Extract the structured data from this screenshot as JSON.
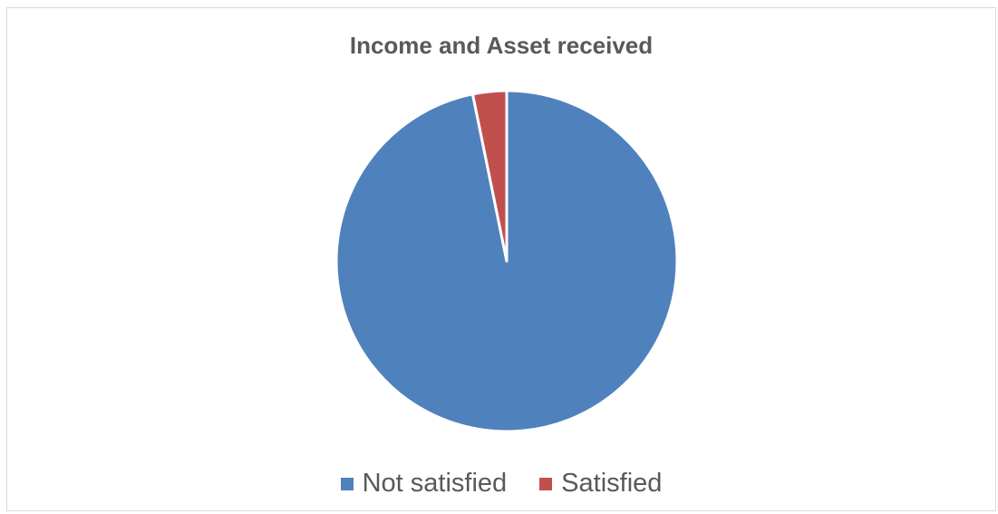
{
  "chart_data": {
    "type": "pie",
    "title": "Income and Asset received",
    "categories": [
      "Not satisfied",
      "Satisfied"
    ],
    "values": [
      96.8,
      3.2
    ],
    "colors": [
      "#4f81bd",
      "#c0504d"
    ],
    "legend": "bottom"
  }
}
